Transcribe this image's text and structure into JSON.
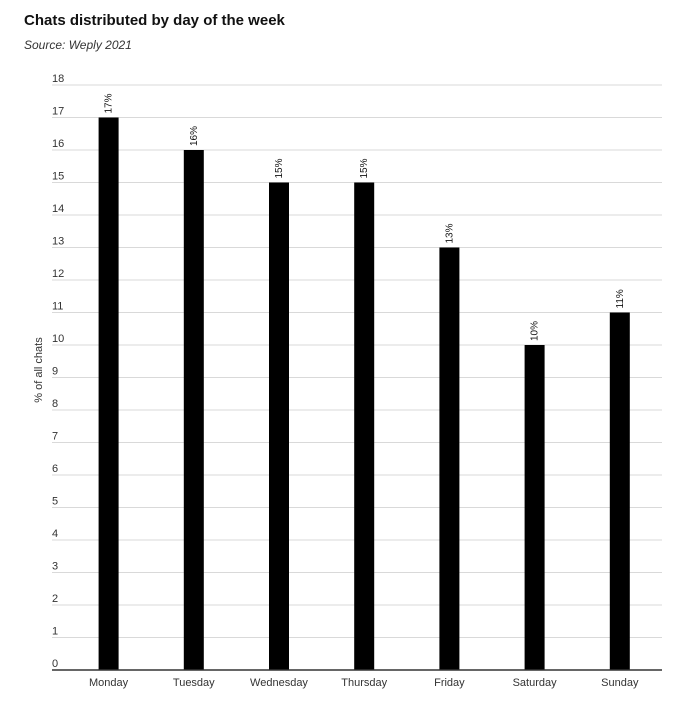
{
  "chart_data": {
    "type": "bar",
    "title": "Chats distributed by day of the week",
    "subtitle": "Source: Weply 2021",
    "ylabel": "% of all chats",
    "xlabel": "",
    "categories": [
      "Monday",
      "Tuesday",
      "Wednesday",
      "Thursday",
      "Friday",
      "Saturday",
      "Sunday"
    ],
    "values": [
      17,
      16,
      15,
      15,
      13,
      10,
      11
    ],
    "data_labels": [
      "17%",
      "16%",
      "15%",
      "15%",
      "13%",
      "10%",
      "11%"
    ],
    "ylim": [
      0,
      18
    ],
    "yticks": [
      0,
      1,
      2,
      3,
      4,
      5,
      6,
      7,
      8,
      9,
      10,
      11,
      12,
      13,
      14,
      15,
      16,
      17,
      18
    ],
    "grid": true,
    "bar_color": "#000000"
  }
}
